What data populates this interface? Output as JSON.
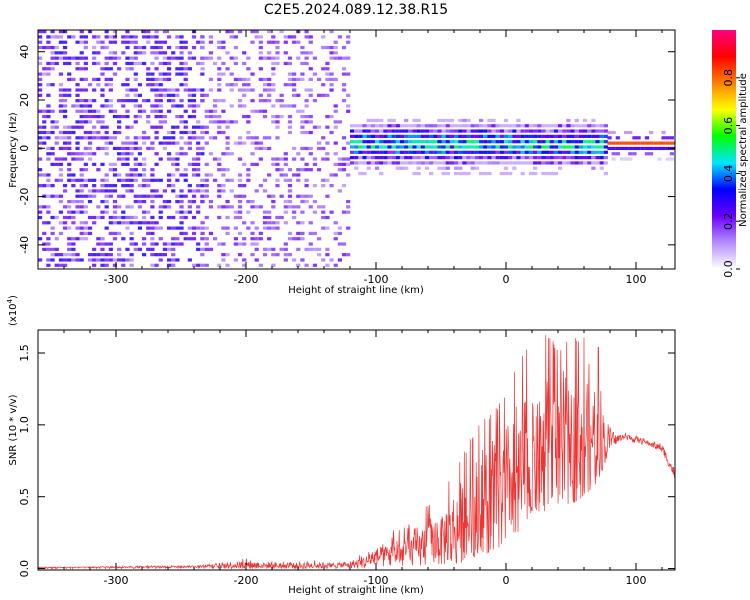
{
  "page": {
    "title": "C2E5.2024.089.12.38.R15"
  },
  "colorbar": {
    "label": "Normalized spectral amplitude",
    "ticks": [
      0.0,
      0.2,
      0.4,
      0.6,
      0.8
    ],
    "tick_labels": [
      "0.0",
      "0.2",
      "0.4",
      "0.6",
      "0.8"
    ],
    "range": [
      0,
      1
    ],
    "colors": [
      "#ffffff",
      "#b48cff",
      "#6a00ff",
      "#0000ff",
      "#00e5ff",
      "#00ff00",
      "#ffff00",
      "#ff8000",
      "#ff0000",
      "#ff0080"
    ]
  },
  "chart_data": [
    {
      "type": "heatmap",
      "title": "",
      "xlabel": "Height of straight line (km)",
      "ylabel": "Frequency (Hz)",
      "xlim": [
        -360,
        130
      ],
      "ylim": [
        -50,
        49
      ],
      "xticks": [
        -300,
        -200,
        -100,
        0,
        100
      ],
      "xtick_labels": [
        "-300",
        "-200",
        "-100",
        "0",
        "100"
      ],
      "yticks": [
        -40,
        -20,
        0,
        20,
        40
      ],
      "ytick_labels": [
        "-40",
        "-20",
        "0",
        "20",
        "40"
      ],
      "segments": [
        {
          "x": [
            -360,
            -235
          ],
          "y_spread": 50,
          "intensity": "low-medium",
          "note": "broadband noise"
        },
        {
          "x": [
            -235,
            -120
          ],
          "y_spread": 50,
          "intensity": "low",
          "note": "sparse noise with gaps"
        },
        {
          "x": [
            -120,
            78
          ],
          "y_center": 0,
          "y_spread": 8,
          "intensity": "medium-high",
          "note": "signal band near 0 Hz"
        },
        {
          "x": [
            78,
            130
          ],
          "y_center": 0,
          "y_spread": 2,
          "intensity": "high",
          "note": "narrow peak at 0 Hz"
        }
      ],
      "colorbar_range": [
        0,
        1
      ]
    },
    {
      "type": "line",
      "title": "",
      "xlabel": "Height of straight line (km)",
      "ylabel": "SNR (10 * v/v)",
      "multiplier_label": "(x10",
      "multiplier_exp": "4",
      "xlim": [
        -360,
        130
      ],
      "ylim": [
        -0.01,
        1.66
      ],
      "xticks": [
        -300,
        -200,
        -100,
        0,
        100
      ],
      "xtick_labels": [
        "-300",
        "-200",
        "-100",
        "0",
        "100"
      ],
      "yticks": [
        0.0,
        0.5,
        1.0,
        1.5
      ],
      "ytick_labels": [
        "0.0",
        "0.5",
        "1.0",
        "1.5"
      ],
      "color": "#ee3333",
      "series": [
        {
          "x": [
            -360,
            -330,
            -300,
            -270,
            -240,
            -220,
            -200,
            -180,
            -160,
            -140,
            -120,
            -110,
            -100,
            -90,
            -80,
            -70,
            -60,
            -50,
            -40,
            -30,
            -20,
            -10,
            0,
            10,
            20,
            30,
            40,
            50,
            60,
            70,
            75,
            80,
            90,
            100,
            110,
            120,
            130
          ],
          "y": [
            0.01,
            0.01,
            0.01,
            0.01,
            0.015,
            0.02,
            0.025,
            0.02,
            0.02,
            0.02,
            0.025,
            0.04,
            0.08,
            0.1,
            0.12,
            0.14,
            0.16,
            0.2,
            0.25,
            0.3,
            0.4,
            0.5,
            0.55,
            0.62,
            0.75,
            0.85,
            0.88,
            0.9,
            0.95,
            0.92,
            0.9,
            0.88,
            0.92,
            0.9,
            0.87,
            0.84,
            0.65
          ],
          "y_peak": [
            0.01,
            0.01,
            0.015,
            0.02,
            0.02,
            0.05,
            0.08,
            0.06,
            0.07,
            0.05,
            0.06,
            0.12,
            0.18,
            0.25,
            0.3,
            0.35,
            0.45,
            0.55,
            0.7,
            0.85,
            1.05,
            1.1,
            1.25,
            1.5,
            1.6,
            1.65,
            1.55,
            1.6,
            1.65,
            1.6,
            1.4,
            1.0,
            0.95,
            0.93,
            0.9,
            0.87,
            0.7
          ],
          "y_trough": [
            0.0,
            0.0,
            0.0,
            0.0,
            0.0,
            0.0,
            0.0,
            0.0,
            0.0,
            0.0,
            0.0,
            0.0,
            0.01,
            0.02,
            0.02,
            0.02,
            0.03,
            0.03,
            0.03,
            0.05,
            0.1,
            0.1,
            0.2,
            0.25,
            0.4,
            0.4,
            0.45,
            0.45,
            0.5,
            0.6,
            0.7,
            0.85,
            0.88,
            0.87,
            0.85,
            0.8,
            0.6
          ]
        }
      ]
    }
  ]
}
